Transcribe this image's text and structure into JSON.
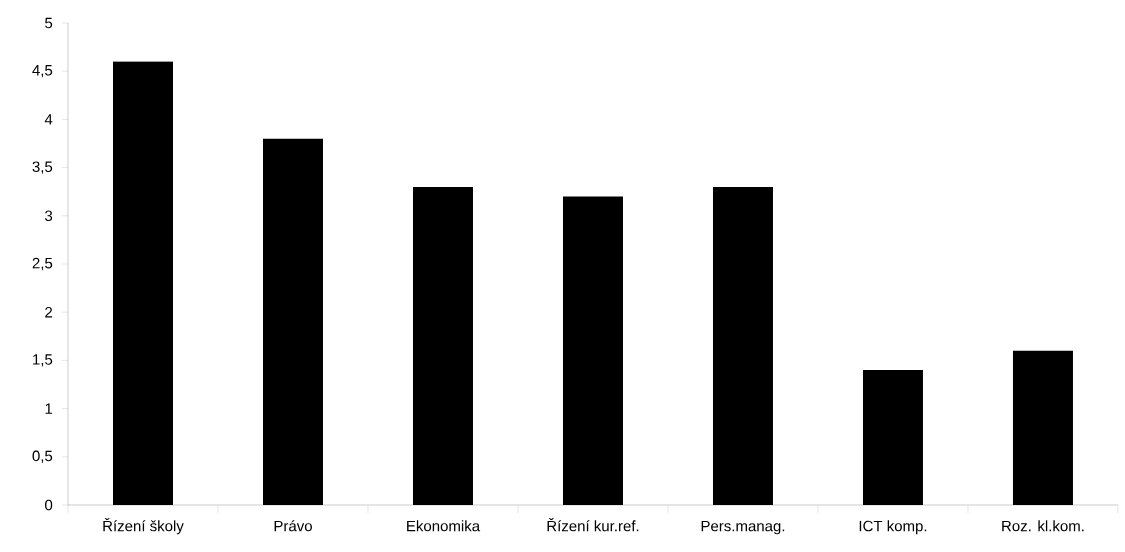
{
  "chart_data": {
    "type": "bar",
    "categories": [
      "Řízení školy",
      "Právo",
      "Ekonomika",
      "Řízení kur.ref.",
      "Pers.manag.",
      "ICT komp.",
      "Roz. kl.kom."
    ],
    "values": [
      4.6,
      3.8,
      3.3,
      3.2,
      3.3,
      1.4,
      1.6
    ],
    "color": "#000000",
    "ylim": [
      0,
      5
    ],
    "yticks": [
      0,
      {
        "value": 0.5,
        "label": "0,5"
      },
      1,
      {
        "value": 1.5,
        "label": "1,5"
      },
      2,
      {
        "value": 2.5,
        "label": "2,5"
      },
      3,
      {
        "value": 3.5,
        "label": "3,5"
      },
      4,
      {
        "value": 4.5,
        "label": "4,5"
      },
      5
    ],
    "grid": false
  }
}
